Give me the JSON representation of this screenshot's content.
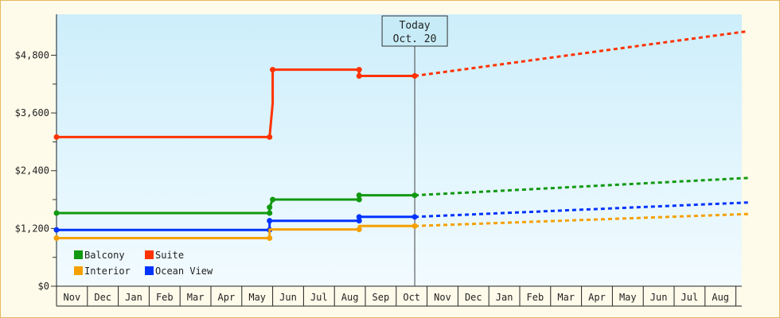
{
  "chart_data": {
    "type": "line",
    "y_ticks": [
      "$0",
      "$1,200",
      "$2,400",
      "$3,600",
      "$4,800"
    ],
    "y_tick_values": [
      0,
      1200,
      2400,
      3600,
      4800
    ],
    "ylim": [
      0,
      5650
    ],
    "x_months": [
      "Nov",
      "Dec",
      "Jan",
      "Feb",
      "Mar",
      "Apr",
      "May",
      "Jun",
      "Jul",
      "Aug",
      "Sep",
      "Oct",
      "Nov",
      "Dec",
      "Jan",
      "Feb",
      "Mar",
      "Apr",
      "May",
      "Jun",
      "Jul",
      "Aug"
    ],
    "today": {
      "line1": "Today",
      "line2": "Oct. 20",
      "month_index": 11.6
    },
    "colors": {
      "Balcony": "#119911",
      "Suite": "#ff3300",
      "Interior": "#f5a000",
      "Ocean View": "#0033ff"
    },
    "series": [
      {
        "name": "Suite",
        "history": [
          [
            0,
            3100
          ],
          [
            6.9,
            3100
          ],
          [
            7.0,
            3800
          ],
          [
            7.0,
            4500
          ],
          [
            9.8,
            4500
          ],
          [
            9.8,
            4370
          ],
          [
            11.6,
            4370
          ]
        ],
        "markers": [
          [
            0,
            3100
          ],
          [
            6.9,
            3100
          ],
          [
            7.0,
            4500
          ],
          [
            9.8,
            4500
          ],
          [
            9.8,
            4370
          ],
          [
            11.6,
            4370
          ]
        ],
        "forecast": [
          [
            11.6,
            4370
          ],
          [
            22.4,
            5300
          ]
        ]
      },
      {
        "name": "Balcony",
        "history": [
          [
            0,
            1520
          ],
          [
            6.9,
            1520
          ],
          [
            6.9,
            1640
          ],
          [
            7.0,
            1800
          ],
          [
            9.8,
            1800
          ],
          [
            9.8,
            1890
          ],
          [
            11.6,
            1890
          ]
        ],
        "markers": [
          [
            0,
            1520
          ],
          [
            6.9,
            1520
          ],
          [
            6.9,
            1640
          ],
          [
            7.0,
            1800
          ],
          [
            9.8,
            1800
          ],
          [
            9.8,
            1890
          ],
          [
            11.6,
            1890
          ]
        ],
        "forecast": [
          [
            11.6,
            1890
          ],
          [
            22.4,
            2250
          ]
        ]
      },
      {
        "name": "Ocean View",
        "history": [
          [
            0,
            1170
          ],
          [
            6.9,
            1170
          ],
          [
            6.9,
            1360
          ],
          [
            9.8,
            1360
          ],
          [
            9.8,
            1440
          ],
          [
            11.6,
            1440
          ]
        ],
        "markers": [
          [
            0,
            1170
          ],
          [
            6.9,
            1170
          ],
          [
            6.9,
            1360
          ],
          [
            9.8,
            1360
          ],
          [
            9.8,
            1440
          ],
          [
            11.6,
            1440
          ]
        ],
        "forecast": [
          [
            11.6,
            1440
          ],
          [
            22.4,
            1740
          ]
        ]
      },
      {
        "name": "Interior",
        "history": [
          [
            0,
            1000
          ],
          [
            6.9,
            1000
          ],
          [
            6.9,
            1180
          ],
          [
            9.8,
            1180
          ],
          [
            9.8,
            1250
          ],
          [
            11.6,
            1250
          ]
        ],
        "markers": [
          [
            0,
            1000
          ],
          [
            6.9,
            1000
          ],
          [
            9.8,
            1180
          ],
          [
            11.6,
            1250
          ]
        ],
        "forecast": [
          [
            11.6,
            1250
          ],
          [
            22.4,
            1500
          ]
        ]
      }
    ],
    "legend": [
      {
        "name": "Balcony",
        "color": "#119911"
      },
      {
        "name": "Suite",
        "color": "#ff3300"
      },
      {
        "name": "Interior",
        "color": "#f5a000"
      },
      {
        "name": "Ocean View",
        "color": "#0033ff"
      }
    ],
    "legend_position": "bottom-left"
  }
}
